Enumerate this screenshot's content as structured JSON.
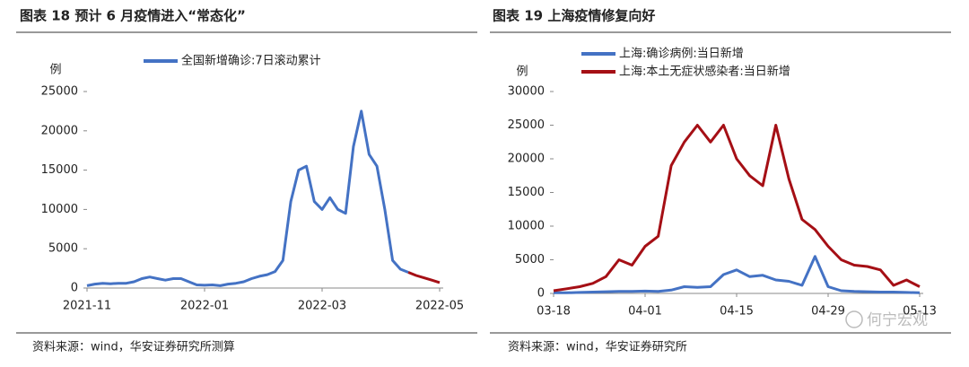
{
  "chart_data": [
    {
      "type": "line",
      "title": "图表 18 预计 6 月疫情进入“常态化”",
      "y_label": "例",
      "categories": [
        "2021-11",
        null,
        null,
        null,
        null,
        null,
        null,
        null,
        null,
        null,
        null,
        null,
        null,
        null,
        null,
        "2022-01",
        null,
        null,
        null,
        null,
        null,
        null,
        null,
        null,
        null,
        null,
        null,
        null,
        null,
        null,
        "2022-03",
        null,
        null,
        null,
        null,
        null,
        null,
        null,
        null,
        null,
        null,
        null,
        null,
        null,
        null,
        "2022-05"
      ],
      "series": [
        {
          "name": "全国新增确诊:7日滚动累计",
          "color": "#4472c4",
          "values": [
            300,
            500,
            600,
            550,
            600,
            600,
            800,
            1200,
            1400,
            1200,
            1000,
            1200,
            1200,
            800,
            400,
            350,
            400,
            300,
            500,
            600,
            800,
            1200,
            1500,
            1700,
            2100,
            3500,
            11000,
            15000,
            15500,
            11000,
            10000,
            11500,
            10000,
            9500,
            18000,
            22500,
            17000,
            15500,
            10000,
            3500,
            2400,
            2000,
            null,
            null,
            null,
            null
          ]
        },
        {
          "color": "#a50f15",
          "values": [
            null,
            null,
            null,
            null,
            null,
            null,
            null,
            null,
            null,
            null,
            null,
            null,
            null,
            null,
            null,
            null,
            null,
            null,
            null,
            null,
            null,
            null,
            null,
            null,
            null,
            null,
            null,
            null,
            null,
            null,
            null,
            null,
            null,
            null,
            null,
            null,
            null,
            null,
            null,
            null,
            null,
            2000,
            1600,
            1300,
            1000,
            700
          ]
        }
      ],
      "ylim": [
        0,
        25000
      ],
      "yticks": [
        0,
        5000,
        10000,
        15000,
        20000,
        25000
      ],
      "source": "资料来源：wind，华安证券研究所测算"
    },
    {
      "type": "line",
      "title": "图表 19 上海疫情修复向好",
      "y_label": "例",
      "categories": [
        "03-18",
        null,
        null,
        null,
        null,
        null,
        null,
        "04-01",
        null,
        null,
        null,
        null,
        null,
        null,
        "04-15",
        null,
        null,
        null,
        null,
        null,
        null,
        "04-29",
        null,
        null,
        null,
        null,
        null,
        null,
        "05-13"
      ],
      "series": [
        {
          "name": "上海:确诊病例:当日新增",
          "color": "#4472c4",
          "values": [
            100,
            100,
            150,
            200,
            250,
            300,
            300,
            350,
            300,
            500,
            1000,
            900,
            1000,
            2800,
            3500,
            2500,
            2700,
            2000,
            1800,
            1200,
            5500,
            1000,
            400,
            300,
            250,
            200,
            200,
            150,
            100
          ]
        },
        {
          "name": "上海:本土无症状感染者:当日新增",
          "color": "#a50f15",
          "values": [
            400,
            700,
            1000,
            1500,
            2500,
            5000,
            4200,
            7000,
            8500,
            19000,
            22500,
            25000,
            22500,
            25000,
            20000,
            17500,
            16000,
            25000,
            17000,
            11000,
            9500,
            7000,
            5000,
            4200,
            4000,
            3500,
            1200,
            2000,
            1000
          ]
        }
      ],
      "ylim": [
        0,
        30000
      ],
      "yticks": [
        0,
        5000,
        10000,
        15000,
        20000,
        25000,
        30000
      ],
      "source": "资料来源：wind，华安证券研究所"
    }
  ],
  "watermark": "何宁宏观"
}
